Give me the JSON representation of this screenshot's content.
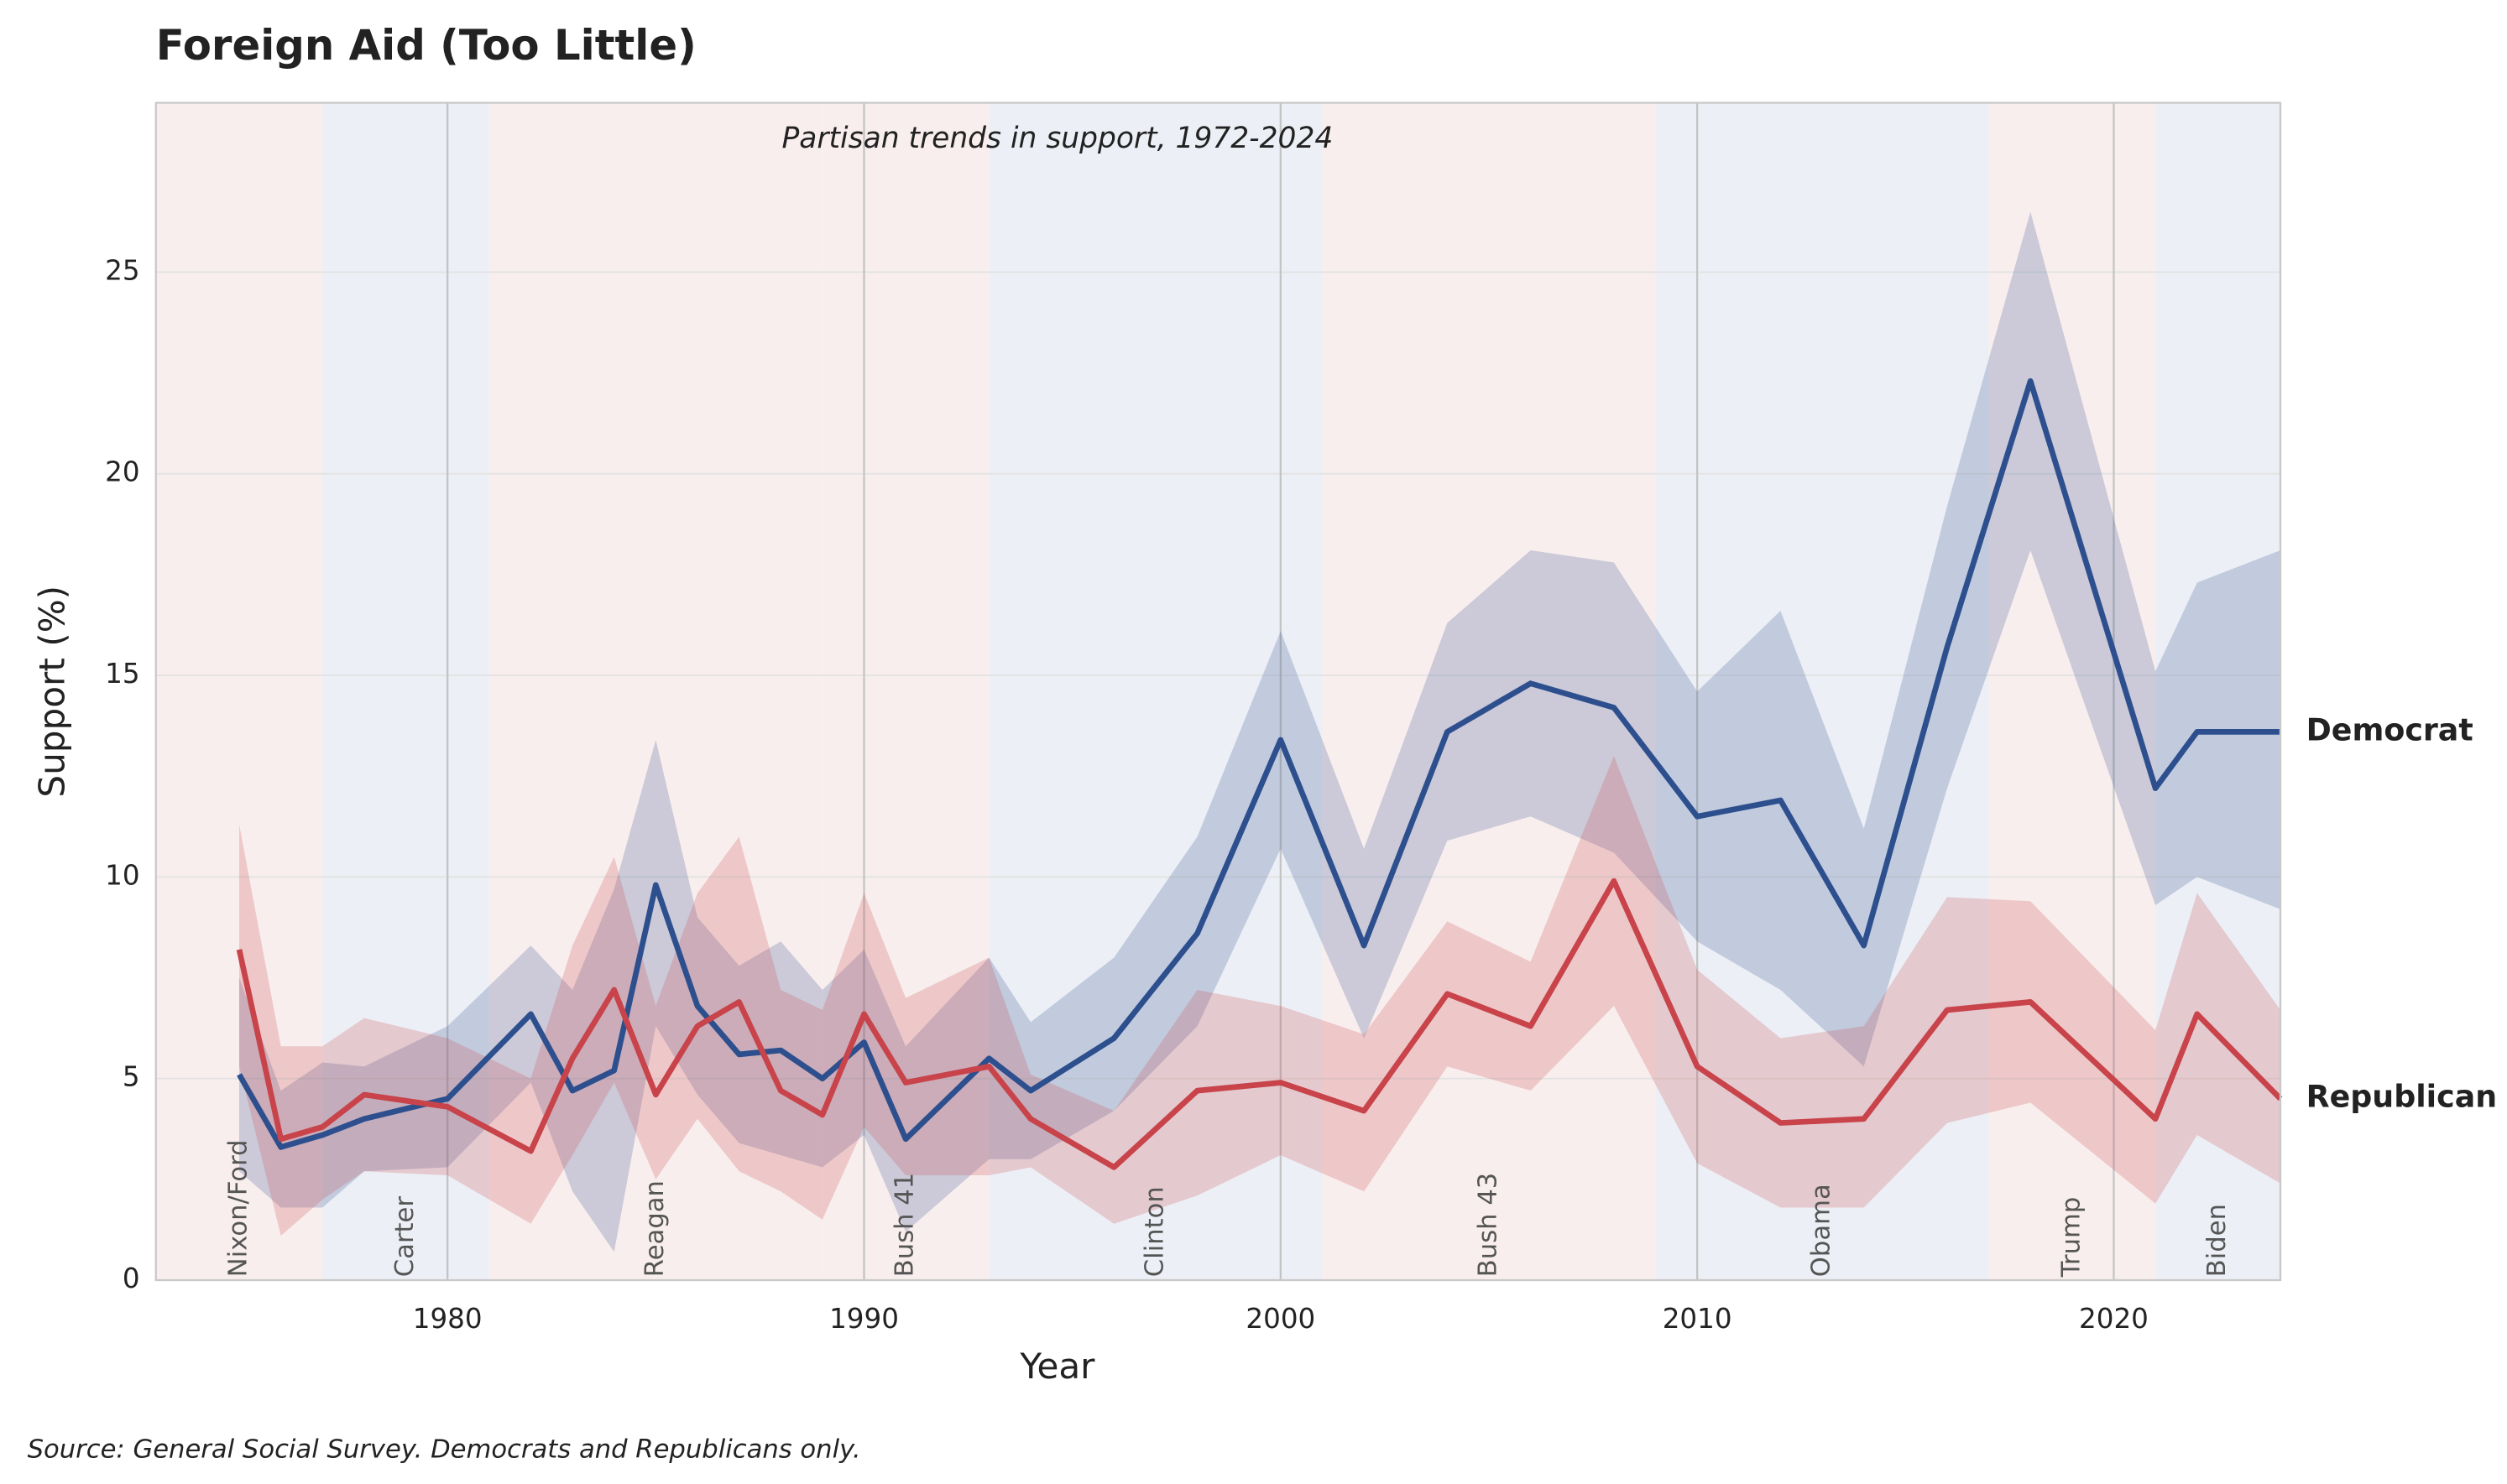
{
  "chart_data": {
    "type": "line",
    "title": "Foreign Aid (Too Little)",
    "subtitle": "Partisan trends in support, 1972-2024",
    "x_label": "Year",
    "y_label": "Support (%)",
    "source": "Source: General Social Survey. Democrats and Republicans only.",
    "x": [
      1975,
      1976,
      1977,
      1978,
      1980,
      1982,
      1983,
      1984,
      1985,
      1986,
      1987,
      1988,
      1989,
      1990,
      1991,
      1993,
      1994,
      1996,
      1998,
      2000,
      2002,
      2004,
      2006,
      2008,
      2010,
      2012,
      2014,
      2016,
      2018,
      2021,
      2022,
      2024
    ],
    "series": [
      {
        "name": "Democrat",
        "color": "#2d4f8e",
        "values": [
          5.1,
          3.3,
          3.6,
          4.0,
          4.5,
          6.6,
          4.7,
          5.2,
          9.8,
          6.8,
          5.6,
          5.7,
          5.0,
          5.9,
          3.5,
          5.5,
          4.7,
          6.0,
          8.6,
          13.4,
          8.3,
          13.6,
          14.8,
          14.2,
          11.5,
          11.9,
          8.3,
          15.7,
          22.3,
          12.2,
          13.6,
          13.6
        ],
        "lower": [
          2.7,
          1.8,
          1.8,
          2.7,
          2.8,
          4.9,
          2.2,
          0.7,
          6.3,
          4.6,
          3.4,
          3.1,
          2.8,
          3.6,
          1.2,
          3.0,
          3.0,
          4.2,
          6.3,
          10.7,
          6.0,
          10.9,
          11.5,
          10.6,
          8.4,
          7.2,
          5.3,
          12.2,
          18.1,
          9.3,
          10.0,
          9.2
        ],
        "upper": [
          7.5,
          4.7,
          5.4,
          5.3,
          6.3,
          8.3,
          7.2,
          9.7,
          13.4,
          9.0,
          7.8,
          8.4,
          7.2,
          8.2,
          5.8,
          8.0,
          6.4,
          8.0,
          11.0,
          16.1,
          10.7,
          16.3,
          18.1,
          17.8,
          14.6,
          16.6,
          11.2,
          19.2,
          26.5,
          15.1,
          17.3,
          18.1
        ]
      },
      {
        "name": "Republican",
        "color": "#c8434a",
        "values": [
          8.2,
          3.5,
          3.8,
          4.6,
          4.3,
          3.2,
          5.5,
          7.2,
          4.6,
          6.3,
          6.9,
          4.7,
          4.1,
          6.6,
          4.9,
          5.3,
          4.0,
          2.8,
          4.7,
          4.9,
          4.2,
          7.1,
          6.3,
          9.9,
          5.3,
          3.9,
          4.0,
          6.7,
          6.9,
          4.0,
          6.6,
          4.5
        ],
        "lower": [
          5.3,
          1.1,
          2.0,
          2.7,
          2.6,
          1.4,
          3.1,
          4.9,
          2.5,
          4.0,
          2.7,
          2.2,
          1.5,
          3.8,
          2.6,
          2.6,
          2.8,
          1.4,
          2.1,
          3.1,
          2.2,
          5.3,
          4.7,
          6.8,
          2.9,
          1.8,
          1.8,
          3.9,
          4.4,
          1.9,
          3.6,
          2.4
        ],
        "upper": [
          11.3,
          5.8,
          5.8,
          6.5,
          6.0,
          5.0,
          8.3,
          10.5,
          6.8,
          9.6,
          11.0,
          7.2,
          6.7,
          9.6,
          7.0,
          8.0,
          5.1,
          4.2,
          7.2,
          6.8,
          6.1,
          8.9,
          7.9,
          13.0,
          7.7,
          6.0,
          6.3,
          9.5,
          9.4,
          6.2,
          9.6,
          6.7
        ]
      }
    ],
    "eras": [
      {
        "label": "Nixon/Ford",
        "start": 1973,
        "end": 1977,
        "color": "#f9eeee"
      },
      {
        "label": "Carter",
        "start": 1977,
        "end": 1981,
        "color": "#eceff5"
      },
      {
        "label": "Reagan",
        "start": 1981,
        "end": 1989,
        "color": "#f9eeee"
      },
      {
        "label": "Bush 41",
        "start": 1989,
        "end": 1993,
        "color": "#f9eeee"
      },
      {
        "label": "Clinton",
        "start": 1993,
        "end": 2001,
        "color": "#eceff5"
      },
      {
        "label": "Bush 43",
        "start": 2001,
        "end": 2009,
        "color": "#f9eeee"
      },
      {
        "label": "Obama",
        "start": 2009,
        "end": 2017,
        "color": "#eceff5"
      },
      {
        "label": "Trump",
        "start": 2017,
        "end": 2021,
        "color": "#f9eeee"
      },
      {
        "label": "Biden",
        "start": 2021,
        "end": 2024,
        "color": "#eceff5"
      }
    ],
    "xlim": [
      1973,
      2024
    ],
    "ylim": [
      0,
      29.2
    ],
    "xticks": [
      1980,
      1990,
      2000,
      2010,
      2020
    ],
    "yticks": [
      0,
      5,
      10,
      15,
      20,
      25
    ],
    "grid": true
  }
}
